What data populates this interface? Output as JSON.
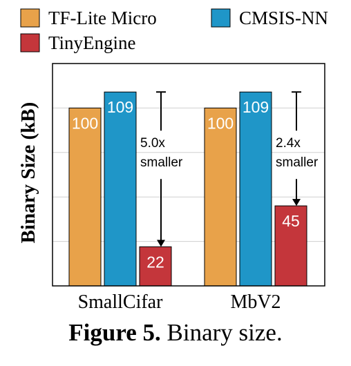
{
  "chart_data": {
    "type": "bar",
    "categories": [
      "SmallCifar",
      "MbV2"
    ],
    "series": [
      {
        "name": "TF-Lite Micro",
        "values": [
          100,
          100
        ],
        "color": "#E8A24A"
      },
      {
        "name": "CMSIS-NN",
        "values": [
          109,
          109
        ],
        "color": "#1F96C8"
      },
      {
        "name": "TinyEngine",
        "values": [
          22,
          45
        ],
        "color": "#C4363B"
      }
    ],
    "ylabel": "Binary Size (kB)",
    "ylim": [
      0,
      125
    ],
    "grid": true,
    "legend_position": "top",
    "annotations": [
      {
        "category": "SmallCifar",
        "text_line1": "5.0x",
        "text_line2": "smaller",
        "from": 109,
        "to": 22
      },
      {
        "category": "MbV2",
        "text_line1": "2.4x",
        "text_line2": "smaller",
        "from": 109,
        "to": 45
      }
    ]
  },
  "caption": {
    "label": "Figure 5.",
    "text": " Binary size."
  }
}
